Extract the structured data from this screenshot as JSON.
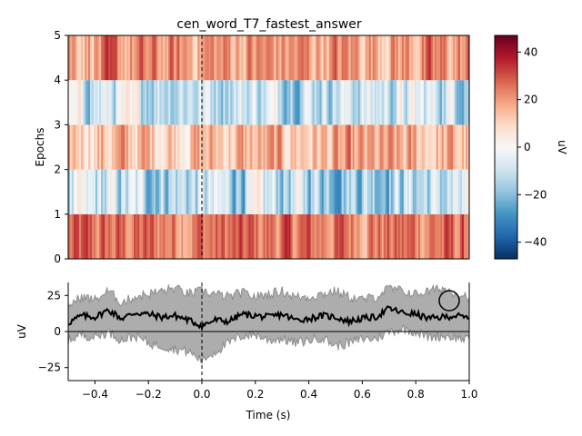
{
  "title": "cen_word_T7_fastest_answer",
  "chart_data": [
    {
      "type": "heatmap",
      "title": "cen_word_T7_fastest_answer",
      "xlabel": "",
      "ylabel": "Epochs",
      "xlim": [
        -0.5,
        1.0
      ],
      "ylim": [
        0,
        5
      ],
      "yticks": [
        0,
        1,
        2,
        3,
        4,
        5
      ],
      "colormap": "RdBu_r",
      "colorbar": {
        "label": "uV",
        "vmin": -47,
        "vmax": 47,
        "ticks": [
          -40,
          -20,
          0,
          20,
          40
        ],
        "tick_labels": [
          "−40",
          "−20",
          "0",
          "20",
          "40"
        ]
      },
      "epochs": [
        {
          "epoch": 1,
          "y_range": [
            0,
            1
          ],
          "mean_uV": 25,
          "variability_uV": 12
        },
        {
          "epoch": 2,
          "y_range": [
            1,
            2
          ],
          "mean_uV": -12,
          "variability_uV": 18
        },
        {
          "epoch": 3,
          "y_range": [
            2,
            3
          ],
          "mean_uV": 14,
          "variability_uV": 14
        },
        {
          "epoch": 4,
          "y_range": [
            3,
            4
          ],
          "mean_uV": -8,
          "variability_uV": 16
        },
        {
          "epoch": 5,
          "y_range": [
            4,
            5
          ],
          "mean_uV": 20,
          "variability_uV": 13
        }
      ],
      "event_marker_x": 0.0
    },
    {
      "type": "line",
      "title": "",
      "xlabel": "Time (s)",
      "ylabel": "uV",
      "xlim": [
        -0.5,
        1.0
      ],
      "ylim": [
        -34,
        34
      ],
      "xticks": [
        -0.4,
        -0.2,
        0.0,
        0.2,
        0.4,
        0.6,
        0.8,
        1.0
      ],
      "xtick_labels": [
        "−0.4",
        "−0.2",
        "0.0",
        "0.2",
        "0.4",
        "0.6",
        "0.8",
        "1.0"
      ],
      "yticks": [
        -25,
        0,
        25
      ],
      "ytick_labels": [
        "−25",
        "0",
        "25"
      ],
      "series": [
        {
          "x": [
            -0.5,
            -0.45,
            -0.4,
            -0.35,
            -0.3,
            -0.25,
            -0.2,
            -0.15,
            -0.1,
            -0.05,
            0.0,
            0.05,
            0.1,
            0.15,
            0.2,
            0.25,
            0.3,
            0.35,
            0.4,
            0.45,
            0.5,
            0.55,
            0.6,
            0.65,
            0.7,
            0.75,
            0.8,
            0.85,
            0.9,
            0.95,
            1.0
          ],
          "y": [
            6,
            11,
            10,
            15,
            9,
            13,
            12,
            10,
            11,
            8,
            4,
            8,
            7,
            12,
            11,
            10,
            12,
            8,
            9,
            11,
            10,
            7,
            9,
            10,
            16,
            13,
            12,
            9,
            10,
            11,
            9
          ],
          "band_lower": [
            -6,
            -2,
            -4,
            0,
            -6,
            -3,
            -8,
            -10,
            -12,
            -14,
            -20,
            -14,
            -8,
            -3,
            -2,
            -6,
            -5,
            -8,
            -6,
            -4,
            -10,
            -8,
            -5,
            -5,
            0,
            2,
            0,
            -4,
            -3,
            -4,
            -6
          ],
          "band_upper": [
            18,
            24,
            22,
            28,
            20,
            24,
            26,
            28,
            30,
            26,
            28,
            26,
            24,
            27,
            24,
            26,
            28,
            24,
            24,
            26,
            28,
            24,
            22,
            24,
            30,
            28,
            26,
            28,
            30,
            27,
            24
          ]
        }
      ],
      "event_marker_x": 0.0,
      "zero_line": true
    }
  ]
}
